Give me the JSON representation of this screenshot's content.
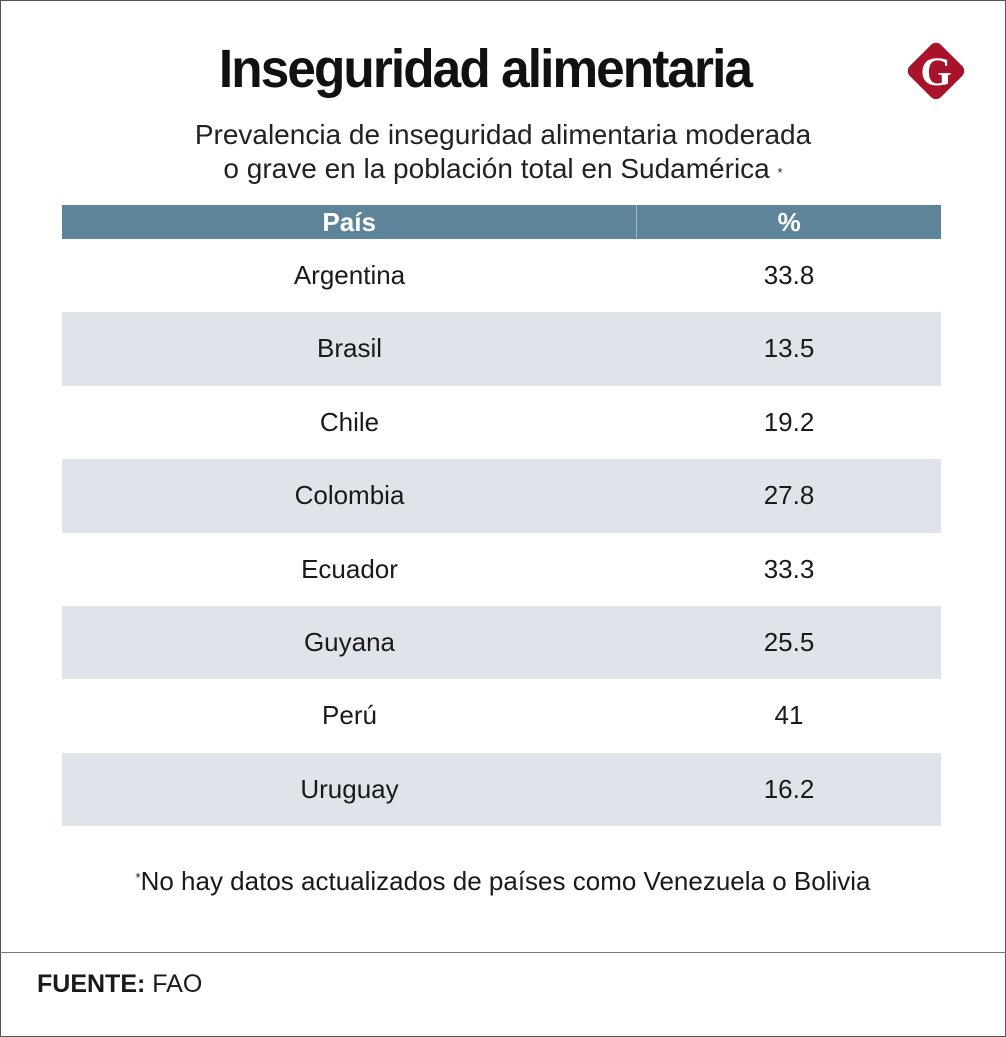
{
  "title": "Inseguridad alimentaria",
  "subtitle_line1": "Prevalencia de inseguridad alimentaria moderada",
  "subtitle_line2": "o grave en la población total en Sudamérica",
  "subtitle_marker": "*",
  "logo": {
    "icon": "g-diamond-logo",
    "letter": "G",
    "color": "#a8122a"
  },
  "colors": {
    "header": "#5d8499",
    "stripe": "#dfe4ea"
  },
  "chart_data": {
    "type": "table",
    "columns": [
      "País",
      "%"
    ],
    "rows": [
      {
        "country": "Argentina",
        "value": "33.8"
      },
      {
        "country": "Brasil",
        "value": "13.5"
      },
      {
        "country": "Chile",
        "value": "19.2"
      },
      {
        "country": "Colombia",
        "value": "27.8"
      },
      {
        "country": "Ecuador",
        "value": "33.3"
      },
      {
        "country": "Guyana",
        "value": "25.5"
      },
      {
        "country": "Perú",
        "value": "41"
      },
      {
        "country": "Uruguay",
        "value": "16.2"
      }
    ]
  },
  "note_marker": "*",
  "note": "No hay datos actualizados de países como Venezuela o Bolivia",
  "source_label": "FUENTE:",
  "source_value": "FAO"
}
